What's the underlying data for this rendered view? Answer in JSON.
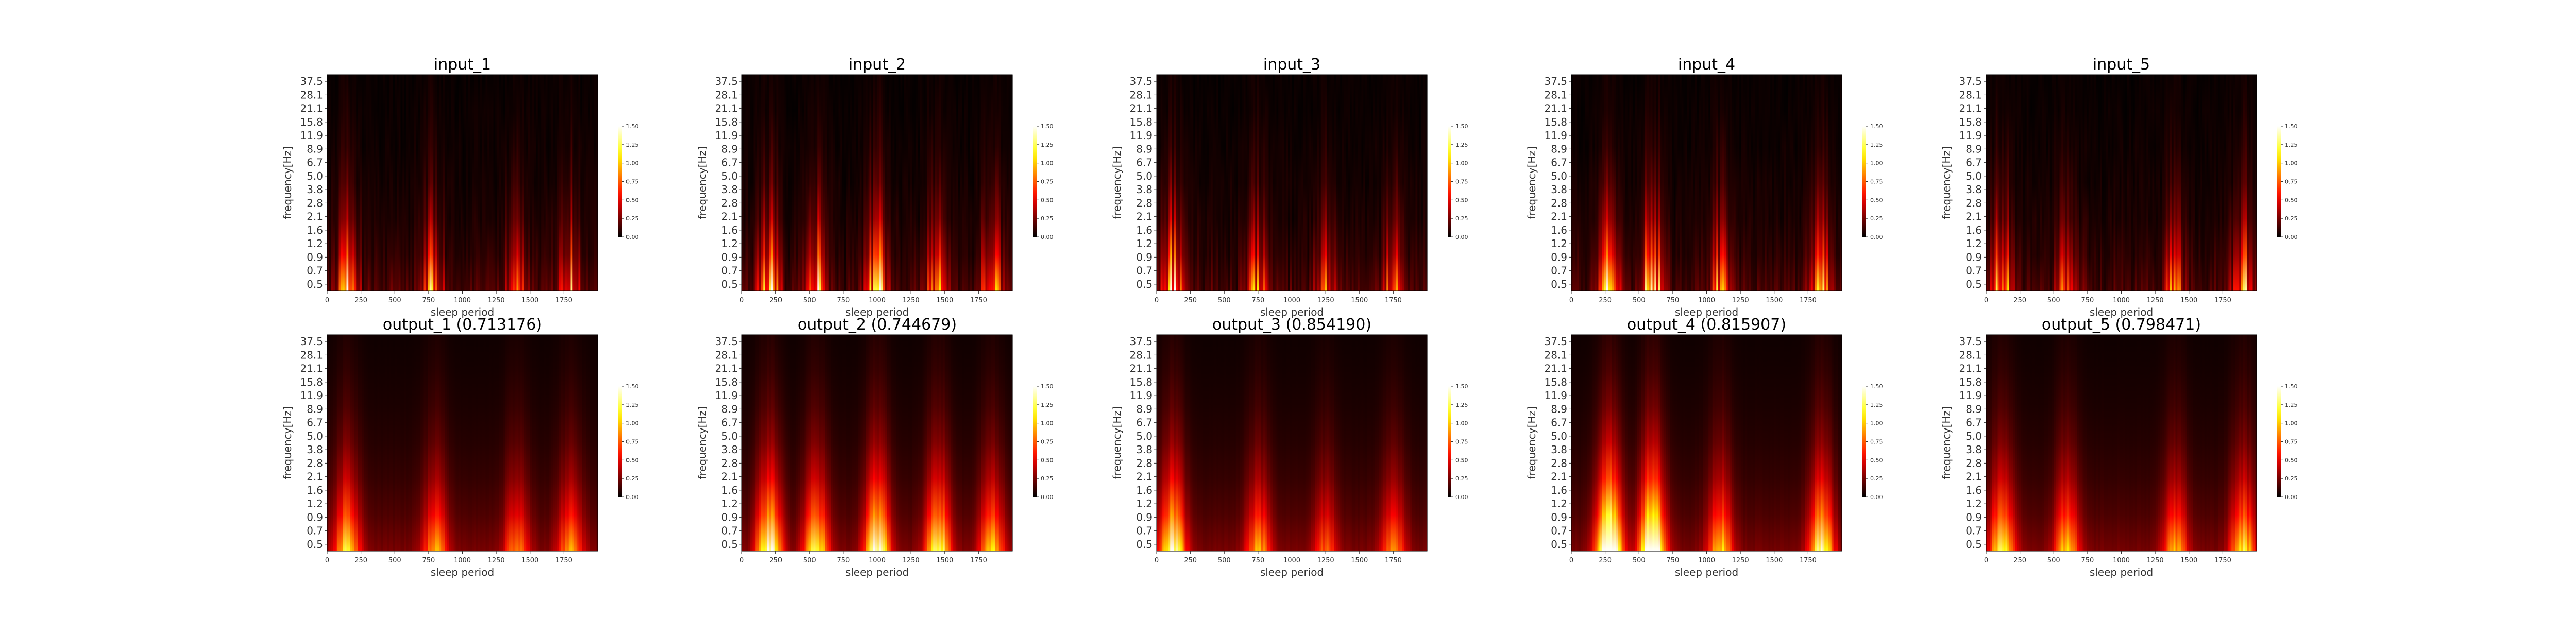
{
  "chart_data": {
    "type": "heatmap",
    "layout": {
      "rows": 2,
      "cols": 5
    },
    "xlabel": "sleep period",
    "ylabel": "frequency[Hz]",
    "xlim": [
      0,
      2000
    ],
    "xticks": [
      "0",
      "250",
      "500",
      "750",
      "1000",
      "1250",
      "1500",
      "1750"
    ],
    "yticks": [
      "0.5",
      "0.7",
      "0.9",
      "1.2",
      "1.6",
      "2.1",
      "2.8",
      "3.8",
      "5.0",
      "6.7",
      "8.9",
      "11.9",
      "15.8",
      "21.1",
      "28.1",
      "37.5"
    ],
    "colorbar": {
      "vmin": 0.0,
      "vmax": 1.5,
      "ticks": [
        "0.00",
        "0.25",
        "0.50",
        "0.75",
        "1.00",
        "1.25",
        "1.50"
      ],
      "colormap": "hot"
    },
    "panels": [
      {
        "title": "input_1",
        "hotspots": [
          {
            "x": 150,
            "amp": 1.1
          },
          {
            "x": 780,
            "amp": 0.9
          },
          {
            "x": 1400,
            "amp": 0.8
          },
          {
            "x": 1800,
            "amp": 0.9
          }
        ]
      },
      {
        "title": "input_2",
        "hotspots": [
          {
            "x": 200,
            "amp": 1.3
          },
          {
            "x": 550,
            "amp": 1.1
          },
          {
            "x": 1000,
            "amp": 1.2
          },
          {
            "x": 1450,
            "amp": 1.1
          },
          {
            "x": 1850,
            "amp": 0.9
          }
        ]
      },
      {
        "title": "input_3",
        "hotspots": [
          {
            "x": 120,
            "amp": 1.3
          },
          {
            "x": 750,
            "amp": 0.9
          },
          {
            "x": 1250,
            "amp": 0.7
          },
          {
            "x": 1750,
            "amp": 0.8
          }
        ]
      },
      {
        "title": "input_4",
        "hotspots": [
          {
            "x": 280,
            "amp": 1.6
          },
          {
            "x": 600,
            "amp": 1.6
          },
          {
            "x": 1100,
            "amp": 0.9
          },
          {
            "x": 1850,
            "amp": 1.1
          }
        ]
      },
      {
        "title": "input_5",
        "hotspots": [
          {
            "x": 120,
            "amp": 1.2
          },
          {
            "x": 600,
            "amp": 0.9
          },
          {
            "x": 1400,
            "amp": 0.8
          },
          {
            "x": 1900,
            "amp": 1.0
          }
        ]
      },
      {
        "title": "output_1 (0.713176)",
        "hotspots": [
          {
            "x": 150,
            "amp": 0.9
          },
          {
            "x": 800,
            "amp": 0.7
          },
          {
            "x": 1400,
            "amp": 0.6
          },
          {
            "x": 1800,
            "amp": 0.7
          }
        ]
      },
      {
        "title": "output_2 (0.744679)",
        "hotspots": [
          {
            "x": 200,
            "amp": 1.2
          },
          {
            "x": 550,
            "amp": 1.0
          },
          {
            "x": 1000,
            "amp": 1.2
          },
          {
            "x": 1450,
            "amp": 1.1
          },
          {
            "x": 1850,
            "amp": 0.8
          }
        ]
      },
      {
        "title": "output_3 (0.854190)",
        "hotspots": [
          {
            "x": 120,
            "amp": 1.2
          },
          {
            "x": 750,
            "amp": 0.7
          },
          {
            "x": 1250,
            "amp": 0.5
          },
          {
            "x": 1750,
            "amp": 0.6
          }
        ]
      },
      {
        "title": "output_4 (0.815907)",
        "hotspots": [
          {
            "x": 280,
            "amp": 1.7
          },
          {
            "x": 600,
            "amp": 1.7
          },
          {
            "x": 1100,
            "amp": 0.8
          },
          {
            "x": 1850,
            "amp": 1.1
          }
        ]
      },
      {
        "title": "output_5 (0.798471)",
        "hotspots": [
          {
            "x": 120,
            "amp": 1.0
          },
          {
            "x": 600,
            "amp": 0.8
          },
          {
            "x": 1400,
            "amp": 0.7
          },
          {
            "x": 1900,
            "amp": 0.9
          }
        ]
      }
    ]
  }
}
